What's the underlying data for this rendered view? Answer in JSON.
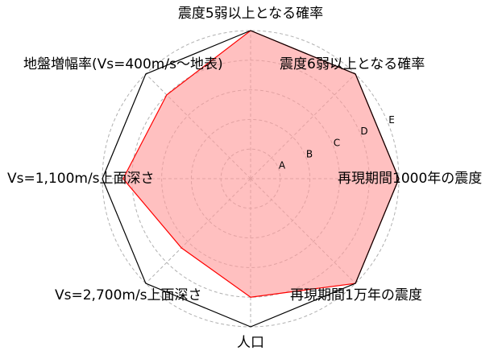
{
  "chart_data": {
    "type": "radar",
    "axes": [
      "震度5弱以上となる確率",
      "震度6弱以上となる確率",
      "再現期間1000年の震度",
      "再現期間1万年の震度",
      "人口",
      "Vs=2,700m/s上面深さ",
      "Vs=1,100m/s上面深さ",
      "地盤増幅率(Vs=400m/s～地表)"
    ],
    "scale_ticks": [
      "A",
      "B",
      "C",
      "D",
      "E"
    ],
    "range": [
      0,
      5
    ],
    "grid": true,
    "series": [
      {
        "values": [
          5.0,
          5.0,
          5.0,
          5.0,
          4.0,
          3.3,
          4.3,
          4.0
        ],
        "line_color": "#ff0000",
        "fill_color": "#ff9999"
      }
    ]
  }
}
